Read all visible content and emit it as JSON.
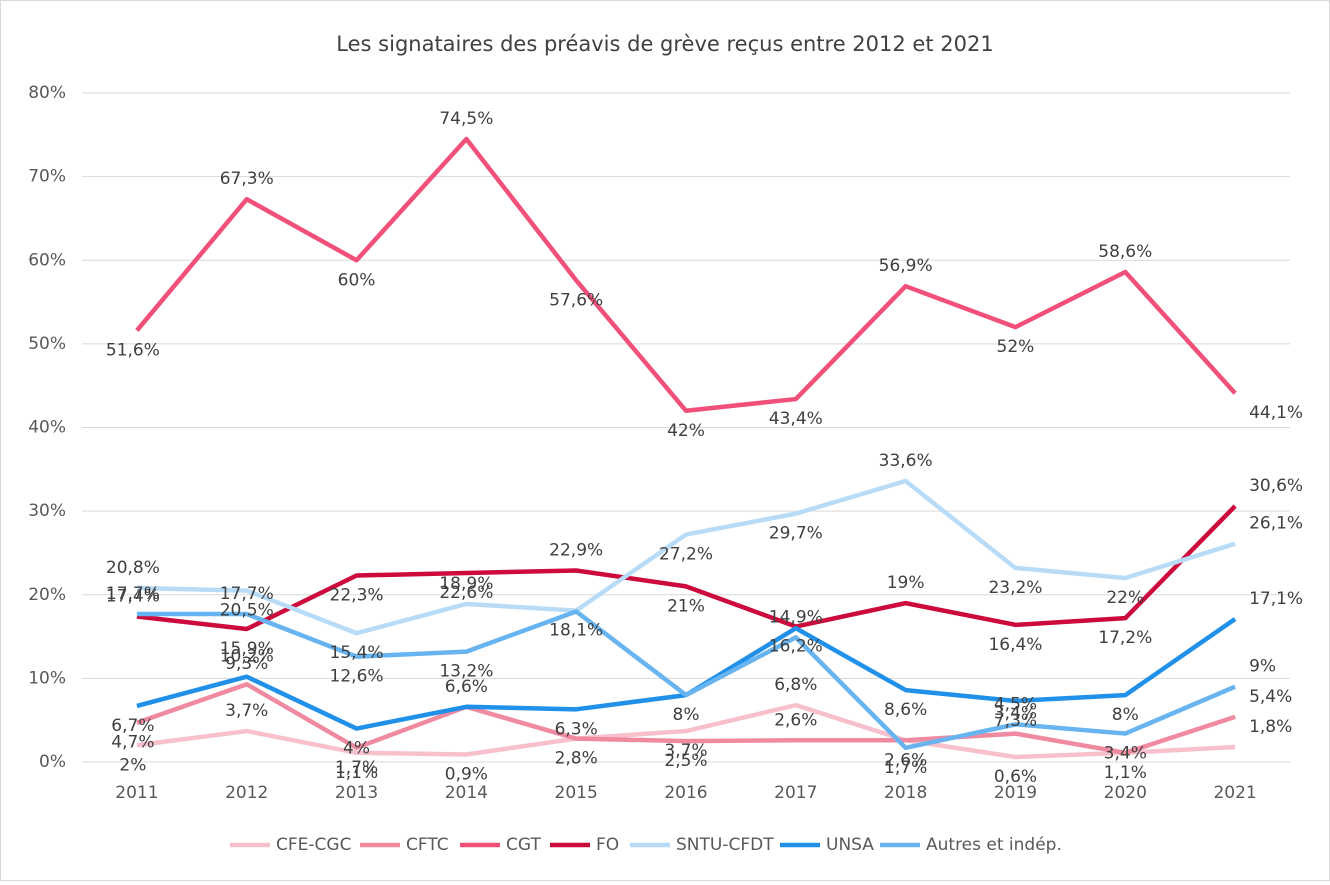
{
  "chart_data": {
    "type": "line",
    "title": "Les signataires des préavis de grève reçus entre 2012 et 2021",
    "categories": [
      "2011",
      "2012",
      "2013",
      "2014",
      "2015",
      "2016",
      "2017",
      "2018",
      "2019",
      "2020",
      "2021"
    ],
    "ylim": [
      0,
      80
    ],
    "yticks": [
      {
        "value": 0,
        "label": "0%"
      },
      {
        "value": 10,
        "label": "10%"
      },
      {
        "value": 20,
        "label": "20%"
      },
      {
        "value": 30,
        "label": "30%"
      },
      {
        "value": 40,
        "label": "40%"
      },
      {
        "value": 50,
        "label": "50%"
      },
      {
        "value": 60,
        "label": "60%"
      },
      {
        "value": 70,
        "label": "70%"
      },
      {
        "value": 80,
        "label": "80%"
      }
    ],
    "grid": true,
    "legend": "bottom",
    "series": [
      {
        "name": "CFE-CGC",
        "color": "#f8c0cc",
        "values": [
          2,
          3.7,
          1.1,
          0.9,
          2.8,
          3.7,
          6.8,
          2.6,
          0.6,
          1.1,
          1.8
        ],
        "value_labels": [
          "2%",
          "3,7%",
          "1,1%",
          "0,9%",
          null,
          "3,7%",
          "6,8%",
          null,
          "0,6%",
          "1,1%",
          "1,8%"
        ]
      },
      {
        "name": "CFTC",
        "color": "#f08aa0",
        "values": [
          4.7,
          9.3,
          1.7,
          6.6,
          2.8,
          2.5,
          2.6,
          2.6,
          3.4,
          1.1,
          5.4
        ],
        "value_labels": [
          "4,7%",
          "9,3%",
          "1,7%",
          null,
          "2,8%",
          "2,5%",
          "2,6%",
          "2,6%",
          "3,4%",
          null,
          "5,4%"
        ]
      },
      {
        "name": "CGT",
        "color": "#f0507a",
        "values": [
          51.6,
          67.3,
          60,
          74.5,
          57.6,
          42,
          43.4,
          56.9,
          52,
          58.6,
          44.1
        ],
        "value_labels": [
          "51,6%",
          "67,3%",
          "60%",
          "74,5%",
          "57,6%",
          "42%",
          "43,4%",
          "56,9%",
          "52%",
          "58,6%",
          "44,1%"
        ]
      },
      {
        "name": "FO",
        "color": "#cc0a3c",
        "values": [
          17.4,
          15.9,
          22.3,
          22.6,
          22.9,
          21,
          16.2,
          19,
          16.4,
          17.2,
          30.6
        ],
        "value_labels": [
          "17,4%",
          "15,9%",
          "22,3%",
          "22,6%",
          "22,9%",
          "21%",
          "16,2%",
          "19%",
          "16,4%",
          "17,2%",
          "30,6%"
        ]
      },
      {
        "name": "SNTU-CFDT",
        "color": "#b8dcf8",
        "values": [
          20.8,
          20.5,
          15.4,
          18.9,
          18.1,
          27.2,
          29.7,
          33.6,
          23.2,
          22,
          26.1
        ],
        "value_labels": [
          "20,8%",
          "20,5%",
          "15,4%",
          "18,9%",
          "18,1%",
          "27,2%",
          "29,7%",
          "33,6%",
          "23,2%",
          "22%",
          "26,1%"
        ]
      },
      {
        "name": "UNSA",
        "color": "#2090e8",
        "values": [
          6.7,
          10.2,
          4,
          6.6,
          6.3,
          8,
          16,
          8.6,
          7.3,
          8,
          17.1
        ],
        "value_labels": [
          "6,7%",
          "10,2%",
          "4%",
          "6,6%",
          "6,3%",
          "8%",
          null,
          "8,6%",
          "7,3%",
          "8%",
          "17,1%"
        ]
      },
      {
        "name": "Autres et indép.",
        "color": "#68b4f0",
        "values": [
          17.7,
          17.7,
          12.6,
          13.2,
          18,
          8,
          14.9,
          1.7,
          4.5,
          3.4,
          9
        ],
        "value_labels": [
          "17,7%",
          "17,7%",
          "12,6%",
          "13,2%",
          null,
          null,
          "14,9%",
          "1,7%",
          "4,5%",
          "3,4%",
          "9%"
        ]
      }
    ]
  }
}
